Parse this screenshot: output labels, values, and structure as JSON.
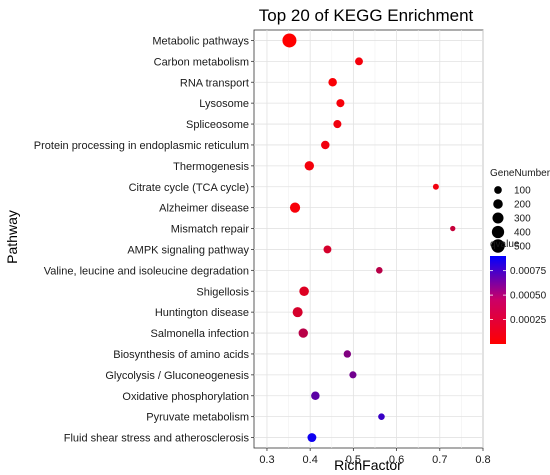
{
  "chart_data": {
    "type": "scatter",
    "title": "Top 20 of KEGG Enrichment",
    "xlabel": "RichFactor",
    "ylabel": "Pathway",
    "xlim": [
      0.27,
      0.8
    ],
    "xticks": [
      "0.3",
      "0.4",
      "0.5",
      "0.6",
      "0.7",
      "0.8"
    ],
    "grid": true,
    "categories": [
      "Metabolic pathways",
      "Carbon metabolism",
      "RNA transport",
      "Lysosome",
      "Spliceosome",
      "Protein processing in endoplasmic reticulum",
      "Thermogenesis",
      "Citrate cycle (TCA cycle)",
      "Alzheimer disease",
      "Mismatch repair",
      "AMPK signaling pathway",
      "Valine, leucine and isoleucine degradation",
      "Shigellosis",
      "Huntington disease",
      "Salmonella infection",
      "Biosynthesis of amino acids",
      "Glycolysis / Gluconeogenesis",
      "Oxidative phosphorylation",
      "Pyruvate metabolism",
      "Fluid shear stress and atherosclerosis"
    ],
    "points": [
      {
        "pathway": "Metabolic pathways",
        "x": 0.352,
        "gene_number": 560,
        "qvalue": 0.0
      },
      {
        "pathway": "Carbon metabolism",
        "x": 0.513,
        "gene_number": 110,
        "qvalue": 4e-05
      },
      {
        "pathway": "RNA transport",
        "x": 0.452,
        "gene_number": 140,
        "qvalue": 2e-05
      },
      {
        "pathway": "Lysosome",
        "x": 0.47,
        "gene_number": 120,
        "qvalue": 3e-05
      },
      {
        "pathway": "Spliceosome",
        "x": 0.463,
        "gene_number": 120,
        "qvalue": 5e-05
      },
      {
        "pathway": "Protein processing in endoplasmic reticulum",
        "x": 0.435,
        "gene_number": 140,
        "qvalue": 5e-05
      },
      {
        "pathway": "Thermogenesis",
        "x": 0.398,
        "gene_number": 190,
        "qvalue": 4e-05
      },
      {
        "pathway": "Citrate cycle (TCA cycle)",
        "x": 0.691,
        "gene_number": 40,
        "qvalue": 5e-05
      },
      {
        "pathway": "Alzheimer disease",
        "x": 0.365,
        "gene_number": 240,
        "qvalue": 3e-05
      },
      {
        "pathway": "Mismatch repair",
        "x": 0.73,
        "gene_number": 25,
        "qvalue": 0.0002
      },
      {
        "pathway": "AMPK signaling pathway",
        "x": 0.44,
        "gene_number": 110,
        "qvalue": 0.00015
      },
      {
        "pathway": "Valine, leucine and isoleucine degradation",
        "x": 0.56,
        "gene_number": 60,
        "qvalue": 0.00025
      },
      {
        "pathway": "Shigellosis",
        "x": 0.386,
        "gene_number": 200,
        "qvalue": 0.00012
      },
      {
        "pathway": "Huntington disease",
        "x": 0.371,
        "gene_number": 230,
        "qvalue": 0.00015
      },
      {
        "pathway": "Salmonella infection",
        "x": 0.384,
        "gene_number": 190,
        "qvalue": 0.00025
      },
      {
        "pathway": "Biosynthesis of amino acids",
        "x": 0.486,
        "gene_number": 90,
        "qvalue": 0.00045
      },
      {
        "pathway": "Glycolysis / Gluconeogenesis",
        "x": 0.499,
        "gene_number": 80,
        "qvalue": 0.0005
      },
      {
        "pathway": "Oxidative phosphorylation",
        "x": 0.412,
        "gene_number": 140,
        "qvalue": 0.00058
      },
      {
        "pathway": "Pyruvate metabolism",
        "x": 0.565,
        "gene_number": 60,
        "qvalue": 0.0007
      },
      {
        "pathway": "Fluid shear stress and atherosclerosis",
        "x": 0.404,
        "gene_number": 160,
        "qvalue": 0.00085
      }
    ],
    "size_legend": {
      "title": "GeneNumber",
      "labels": [
        "100",
        "200",
        "300",
        "400",
        "500"
      ],
      "values": [
        100,
        200,
        300,
        400,
        500
      ]
    },
    "color_legend": {
      "title": "qvalue",
      "labels": [
        "0.00075",
        "0.00050",
        "0.00025"
      ],
      "values": [
        0.00075,
        0.0005,
        0.00025
      ],
      "range": [
        0.0,
        0.0009
      ],
      "low_color": "#ff0000",
      "high_color": "#0000ff"
    },
    "legend_position": "right"
  }
}
